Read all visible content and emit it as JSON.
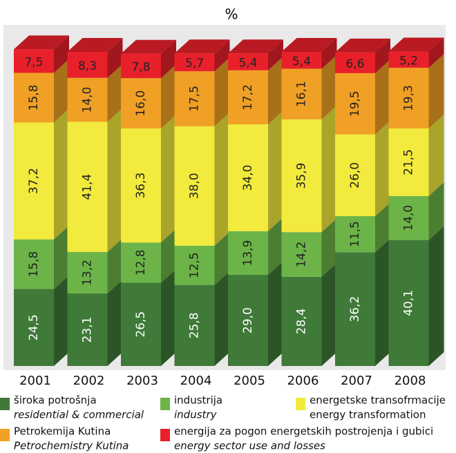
{
  "chart_data": {
    "type": "stacked_bar_3d",
    "subtitle": "%",
    "categories": [
      "2001",
      "2002",
      "2003",
      "2004",
      "2005",
      "2006",
      "2007",
      "2008"
    ],
    "series": [
      {
        "name": "široka potrošnja",
        "name_en": "residential & commercial",
        "color": "#3f7a38",
        "values": [
          24.5,
          23.1,
          26.5,
          25.8,
          29.0,
          28.4,
          36.2,
          40.1
        ],
        "value_labels": [
          "24,5",
          "23,1",
          "26,5",
          "25,8",
          "29,0",
          "28,4",
          "36,2",
          "40,1"
        ]
      },
      {
        "name": "industrija",
        "name_en": "industry",
        "color": "#6cb448",
        "values": [
          15.8,
          13.2,
          12.8,
          12.5,
          13.9,
          14.2,
          11.5,
          14.0
        ],
        "value_labels": [
          "15,8",
          "13,2",
          "12,8",
          "12,5",
          "13,9",
          "14,2",
          "11,5",
          "14,0"
        ]
      },
      {
        "name": "energetske transofrmacije",
        "name_en": "energy transformation",
        "color": "#f2ea3c",
        "values": [
          37.2,
          41.4,
          36.3,
          38.0,
          34.0,
          35.9,
          26.0,
          21.5
        ],
        "value_labels": [
          "37,2",
          "41,4",
          "36,3",
          "38,0",
          "34,0",
          "35,9",
          "26,0",
          "21,5"
        ]
      },
      {
        "name": "Petrokemija Kutina",
        "name_en": "Petrochemistry Kutina",
        "color": "#f0a024",
        "values": [
          15.8,
          14.0,
          16.0,
          17.5,
          17.2,
          16.1,
          19.5,
          19.3
        ],
        "value_labels": [
          "15,8",
          "14,0",
          "16,0",
          "17,5",
          "17,2",
          "16,1",
          "19,5",
          "19,3"
        ]
      },
      {
        "name": "energija za pogon energetskih postrojenja i gubici",
        "name_en": "energy sector use and losses",
        "color": "#e8202a",
        "values": [
          7.5,
          8.3,
          7.8,
          5.7,
          5.4,
          5.4,
          6.6,
          5.2
        ],
        "value_labels": [
          "7,5",
          "8,3",
          "7,8",
          "5,7",
          "5,4",
          "5,4",
          "6,6",
          "5,2"
        ]
      }
    ]
  }
}
